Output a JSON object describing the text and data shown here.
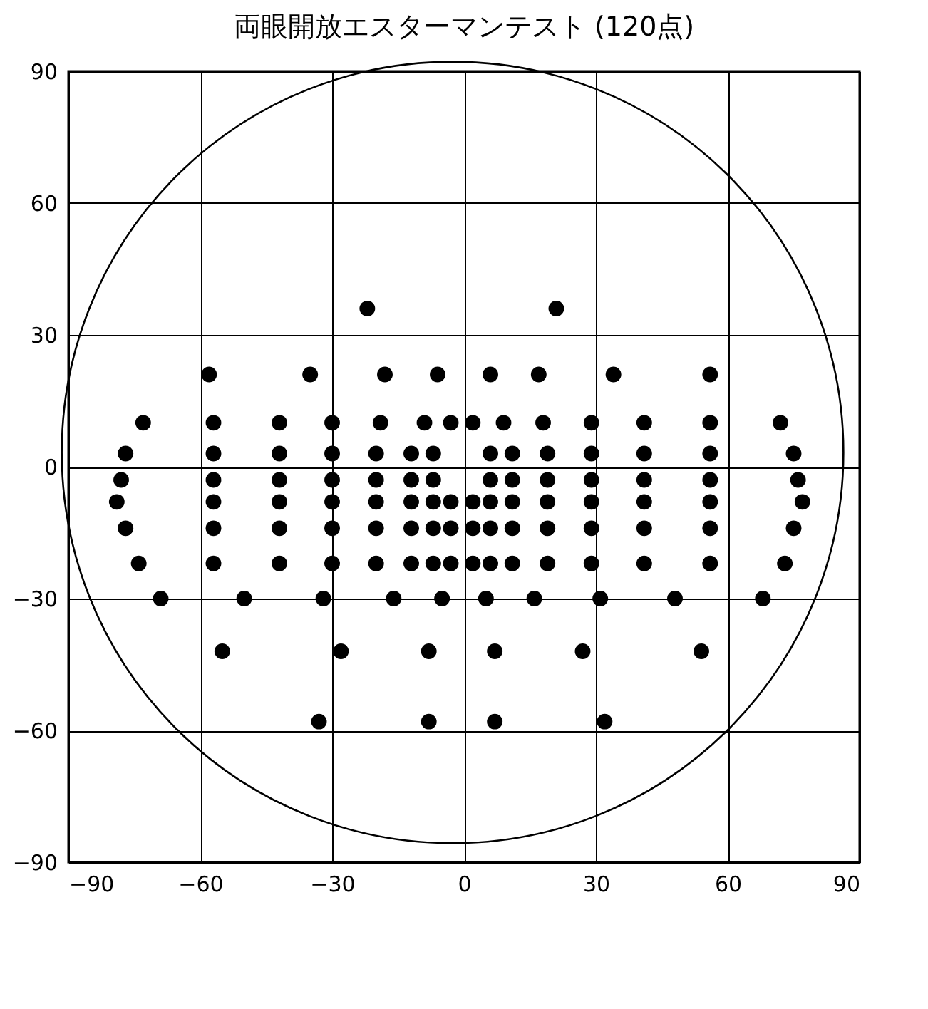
{
  "chart_data": {
    "type": "scatter",
    "title": "両眼開放エスターマンテスト (120点)",
    "xlim": [
      -90,
      90
    ],
    "xticks": [
      -90,
      -60,
      -30,
      0,
      30,
      60,
      90
    ],
    "ylim": [
      -90,
      90
    ],
    "yticks": [
      -90,
      -60,
      -30,
      0,
      30,
      60,
      90
    ],
    "grid": true,
    "marker": "circle",
    "series": [
      {
        "color": "#000000",
        "x": [
          -22,
          21,
          -58,
          -35,
          -18,
          -6,
          6,
          17,
          34,
          56,
          -73,
          -57,
          -42,
          -30,
          -19,
          -9,
          -3,
          2,
          9,
          18,
          29,
          41,
          56,
          72,
          -77,
          -57,
          -42,
          -30,
          -20,
          -12,
          -7,
          6,
          11,
          19,
          29,
          41,
          56,
          75,
          -78,
          -57,
          -42,
          -30,
          -20,
          -12,
          -7,
          6,
          11,
          19,
          29,
          41,
          56,
          76,
          -79,
          -57,
          -42,
          -30,
          -20,
          -12,
          -7,
          -3,
          2,
          6,
          11,
          19,
          29,
          41,
          56,
          77,
          -77,
          -57,
          -42,
          -30,
          -20,
          -12,
          -7,
          -3,
          2,
          6,
          11,
          19,
          29,
          41,
          56,
          75,
          -74,
          -57,
          -42,
          -30,
          -20,
          -12,
          -7,
          -3,
          2,
          6,
          11,
          19,
          29,
          41,
          56,
          73,
          -69,
          -50,
          -32,
          -16,
          -5,
          5,
          16,
          31,
          48,
          68,
          -55,
          -28,
          -8,
          7,
          27,
          54,
          -33,
          -8,
          7,
          32
        ],
        "values": [
          36,
          36,
          21,
          21,
          21,
          21,
          21,
          21,
          21,
          21,
          10,
          10,
          10,
          10,
          10,
          10,
          10,
          10,
          10,
          10,
          10,
          10,
          10,
          10,
          3,
          3,
          3,
          3,
          3,
          3,
          3,
          3,
          3,
          3,
          3,
          3,
          3,
          3,
          -3,
          -3,
          -3,
          -3,
          -3,
          -3,
          -3,
          -3,
          -3,
          -3,
          -3,
          -3,
          -3,
          -3,
          -8,
          -8,
          -8,
          -8,
          -8,
          -8,
          -8,
          -8,
          -8,
          -8,
          -8,
          -8,
          -8,
          -8,
          -8,
          -8,
          -14,
          -14,
          -14,
          -14,
          -14,
          -14,
          -14,
          -14,
          -14,
          -14,
          -14,
          -14,
          -14,
          -14,
          -14,
          -14,
          -22,
          -22,
          -22,
          -22,
          -22,
          -22,
          -22,
          -22,
          -22,
          -22,
          -22,
          -22,
          -22,
          -22,
          -22,
          -22,
          -30,
          -30,
          -30,
          -30,
          -30,
          -30,
          -30,
          -30,
          -30,
          -30,
          -42,
          -42,
          -42,
          -42,
          -42,
          -42,
          -58,
          -58,
          -58,
          -58
        ]
      }
    ]
  }
}
